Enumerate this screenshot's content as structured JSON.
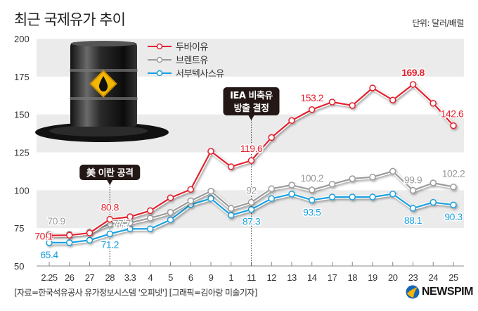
{
  "chart_data": {
    "type": "line",
    "title": "최근 국제유가 추이",
    "unit": "단위: 달러/배럴",
    "xlabel": "",
    "ylabel": "",
    "ylim": [
      50,
      200
    ],
    "yticks": [
      50,
      75,
      100,
      125,
      150,
      175,
      200
    ],
    "grid": "alternating horizontal bands",
    "legend_position": "top-left",
    "categories": [
      "2.25",
      "26",
      "27",
      "28",
      "3.3",
      "4",
      "5",
      "6",
      "9",
      "1",
      "11",
      "12",
      "13",
      "14",
      "17",
      "18",
      "19",
      "20",
      "23",
      "24",
      "25"
    ],
    "series": [
      {
        "name": "두바이유",
        "color": "#e3202d",
        "values": [
          70.1,
          70.3,
          71.8,
          80.8,
          82.5,
          86.5,
          95,
          100.5,
          125.7,
          115.5,
          119.6,
          134.8,
          146,
          153.2,
          158.2,
          155.9,
          167.5,
          159.5,
          169.8,
          157.4,
          142.6
        ]
      },
      {
        "name": "브렌트유",
        "color": "#9b9b9b",
        "values": [
          70.9,
          71,
          72.5,
          77.7,
          78.5,
          81.6,
          85.4,
          93,
          99.4,
          88,
          92,
          101,
          103.4,
          100.2,
          104,
          107.6,
          108.7,
          112.5,
          99.9,
          104.8,
          102.2
        ]
      },
      {
        "name": "서부텍사스유",
        "color": "#1aa0de",
        "values": [
          65.4,
          65.4,
          67,
          71.2,
          74.5,
          74.5,
          80.5,
          90.5,
          94.5,
          83.5,
          87.3,
          94.5,
          97.5,
          93.5,
          95.5,
          95.5,
          95.5,
          97.5,
          88.1,
          92,
          90.3
        ]
      }
    ],
    "data_labels": [
      {
        "series": 0,
        "index": 0,
        "text": "70.1"
      },
      {
        "series": 0,
        "index": 3,
        "text": "80.8"
      },
      {
        "series": 0,
        "index": 10,
        "text": "119.6"
      },
      {
        "series": 0,
        "index": 13,
        "text": "153.2"
      },
      {
        "series": 0,
        "index": 18,
        "text": "169.8"
      },
      {
        "series": 0,
        "index": 20,
        "text": "142.6"
      },
      {
        "series": 1,
        "index": 0,
        "text": "70.9"
      },
      {
        "series": 1,
        "index": 3,
        "text": "77.7"
      },
      {
        "series": 1,
        "index": 10,
        "text": "92"
      },
      {
        "series": 1,
        "index": 13,
        "text": "100.2"
      },
      {
        "series": 1,
        "index": 18,
        "text": "99.9"
      },
      {
        "series": 1,
        "index": 20,
        "text": "102.2"
      },
      {
        "series": 2,
        "index": 0,
        "text": "65.4"
      },
      {
        "series": 2,
        "index": 3,
        "text": "71.2"
      },
      {
        "series": 2,
        "index": 10,
        "text": "87.3"
      },
      {
        "series": 2,
        "index": 13,
        "text": "93.5"
      },
      {
        "series": 2,
        "index": 18,
        "text": "88.1"
      },
      {
        "series": 2,
        "index": 20,
        "text": "90.3"
      }
    ],
    "annotations": [
      {
        "index": 3,
        "lines": [
          "美 이란 공격"
        ]
      },
      {
        "index": 10,
        "lines": [
          "IEA 비축유",
          "방출 결정"
        ]
      }
    ]
  },
  "source": "[자료=한국석유공사 유가정보시스템 '오피넷'] [그래픽=김아랑 미술기자]",
  "logo": "NEWSPIM"
}
